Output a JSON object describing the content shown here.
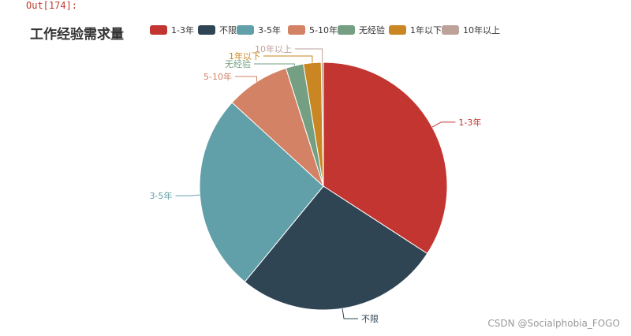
{
  "cell": {
    "out_prompt": "Out[174]:"
  },
  "chart_data": {
    "type": "pie",
    "title": "工作经验需求量",
    "legend_position": "top",
    "slices": [
      {
        "label": "1-3年",
        "value": 37,
        "color": "#c23531"
      },
      {
        "label": "不限",
        "value": 29,
        "color": "#2f4554"
      },
      {
        "label": "3-5年",
        "value": 28,
        "color": "#61a0a8"
      },
      {
        "label": "5-10年",
        "value": 9,
        "color": "#d48265"
      },
      {
        "label": "无经验",
        "value": 2.5,
        "color": "#749f83"
      },
      {
        "label": "1年以下",
        "value": 2.5,
        "color": "#ca8622"
      },
      {
        "label": "10年以上",
        "value": 0.3,
        "color": "#bda29a"
      }
    ]
  },
  "watermark": "CSDN @Socialphobia_FOGO"
}
